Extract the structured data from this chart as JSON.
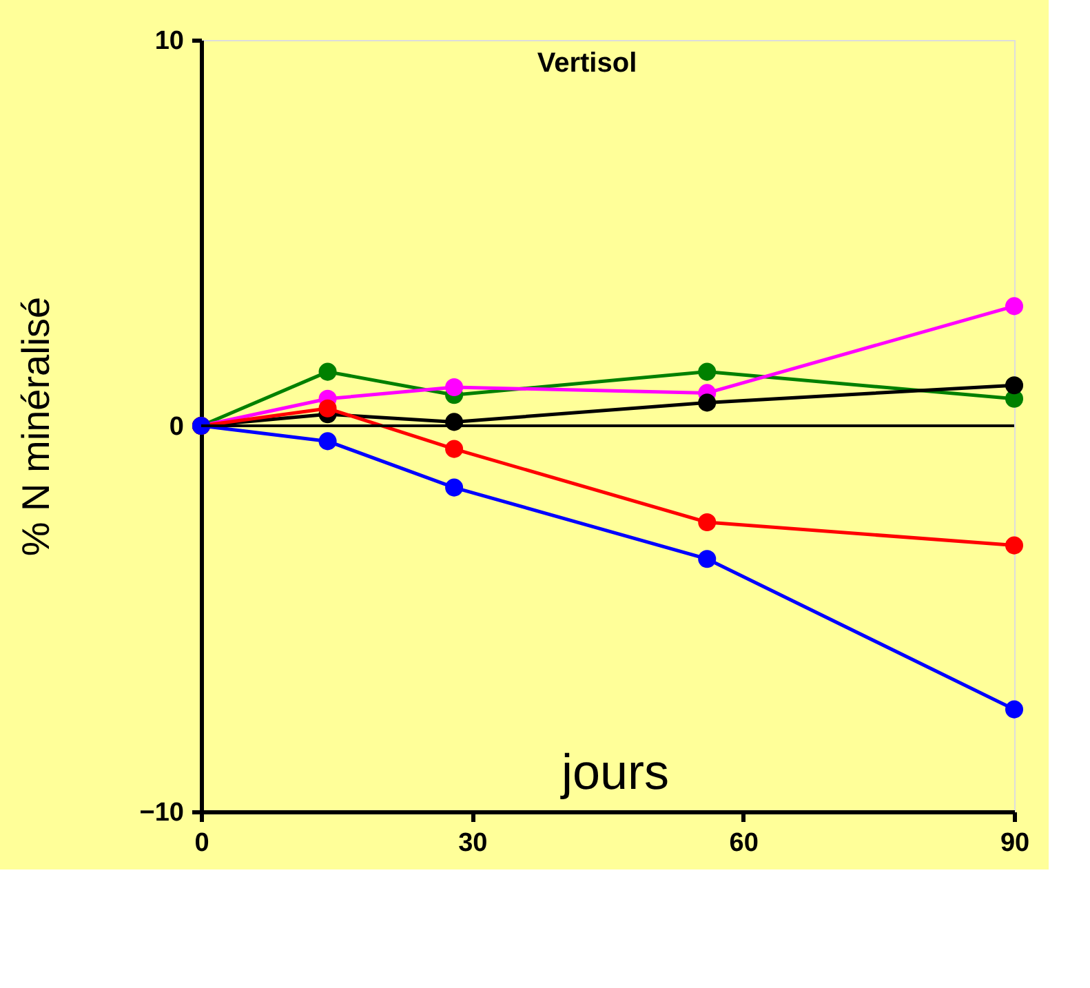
{
  "chart_data": {
    "type": "line",
    "title": "Vertisol",
    "xlabel": "jours",
    "ylabel": "% N minéralisé",
    "x": [
      0,
      14,
      28,
      56,
      90
    ],
    "series": [
      {
        "color": "#008000",
        "values": [
          0,
          1.4,
          0.8,
          1.4,
          0.7
        ]
      },
      {
        "color": "#ff00ff",
        "values": [
          0,
          0.7,
          1.0,
          0.85,
          3.1
        ]
      },
      {
        "color": "#000000",
        "values": [
          0,
          0.3,
          0.1,
          0.6,
          1.05
        ]
      },
      {
        "color": "#ff0000",
        "values": [
          0,
          0.45,
          -0.6,
          -2.5,
          -3.1
        ]
      },
      {
        "color": "#0000ff",
        "values": [
          0,
          -0.4,
          -1.6,
          -3.45,
          -7.35
        ]
      }
    ],
    "xlim": [
      0,
      90
    ],
    "xticks": [
      0,
      30,
      60,
      90
    ],
    "ylim": [
      -10,
      10
    ],
    "yticks": [
      -10,
      0,
      10
    ],
    "ref_lines": [
      {
        "axis": "y",
        "value": 0,
        "color": "#000000"
      }
    ],
    "grid": false,
    "marker": "circle",
    "line_style": "solid"
  }
}
